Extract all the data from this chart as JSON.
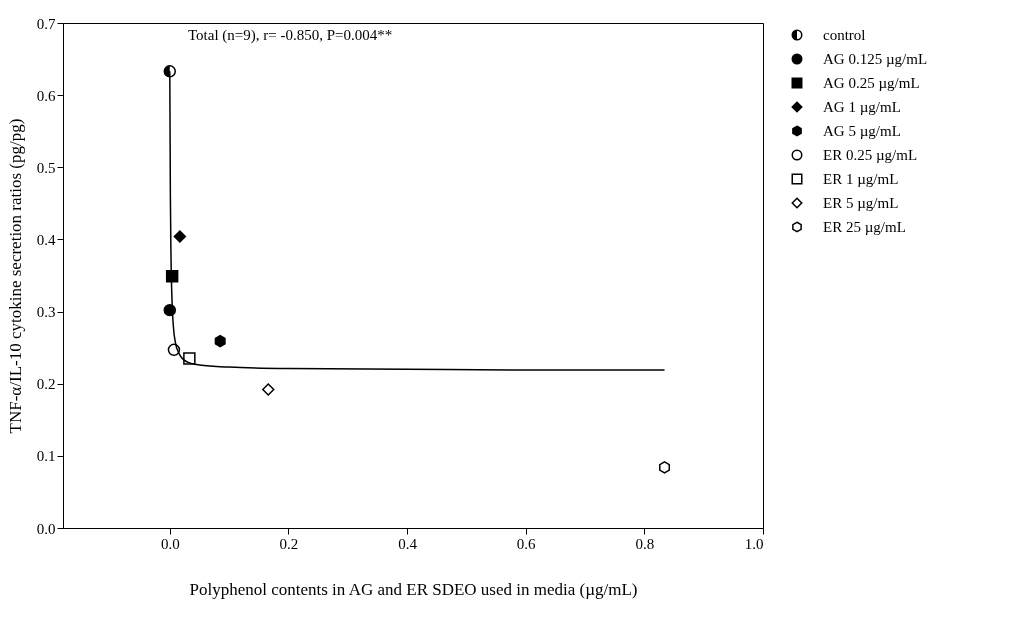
{
  "chart_data": {
    "type": "scatter",
    "xlabel": "Polyphenol contents in AG and ER SDEO used in media (µg/mL)",
    "ylabel": "TNF-α/IL-10 cytokine secretion ratios (pg/pg)",
    "annotations": [
      "Total (n=9), r= -0.850, P=0.004**"
    ],
    "xlim": [
      -0.18,
      1.0
    ],
    "xticks": [
      {
        "value": 0,
        "label": "0.0"
      },
      0.2,
      0.4,
      0.6,
      0.8,
      {
        "value": 1,
        "label": "1.0"
      }
    ],
    "ylim": [
      0,
      0.7
    ],
    "yticks": [
      {
        "value": 0,
        "label": "0.0"
      },
      0.1,
      0.2,
      0.3,
      0.4,
      0.5,
      0.6,
      0.7
    ],
    "grid": false,
    "legend": "top right",
    "series": [
      {
        "name": "control",
        "marker": "half_circle",
        "color": "#000000",
        "x": [
          0.0
        ],
        "values": [
          0.633
        ]
      },
      {
        "name": "AG 0.125 µg/mL",
        "marker": "circle",
        "color": "#000000",
        "x": [
          0.0
        ],
        "values": [
          0.302
        ]
      },
      {
        "name": "AG 0.25 µg/mL",
        "marker": "square",
        "color": "#000000",
        "x": [
          0.004
        ],
        "values": [
          0.349
        ]
      },
      {
        "name": "AG 1 µg/mL",
        "marker": "diamond",
        "color": "#000000",
        "x": [
          0.017
        ],
        "values": [
          0.404
        ]
      },
      {
        "name": "AG 5 µg/mL",
        "color": "#000000",
        "x": [
          0.085
        ],
        "values": [
          0.259
        ]
      },
      {
        "name": "ER 0.25 µg/mL",
        "marker": "circle",
        "color": "#ffffff",
        "x": [
          0.007
        ],
        "values": [
          0.247
        ]
      },
      {
        "name": "ER 1 µg/mL",
        "marker": "square",
        "color": "#ffffff",
        "x": [
          0.033
        ],
        "values": [
          0.235
        ]
      },
      {
        "name": "ER 5 µg/mL",
        "marker": "diamond",
        "color": "#ffffff",
        "x": [
          0.166
        ],
        "values": [
          0.192
        ]
      },
      {
        "name": "ER 25 µg/mL",
        "color": "#ffffff",
        "x": [
          0.834
        ],
        "values": [
          0.084
        ]
      },
      {
        "type": "line",
        "marker": "none",
        "color": "#000000",
        "line_style": "solid",
        "x": [
          0,
          0.001,
          0.002,
          0.004,
          0.006,
          0.01,
          0.015,
          0.02,
          0.03,
          0.05,
          0.1,
          0.2,
          0.4,
          0.6,
          0.834
        ],
        "values": [
          0.633,
          0.46,
          0.38,
          0.31,
          0.28,
          0.255,
          0.243,
          0.236,
          0.23,
          0.226,
          0.223,
          0.221,
          0.22,
          0.219,
          0.219
        ]
      }
    ]
  }
}
